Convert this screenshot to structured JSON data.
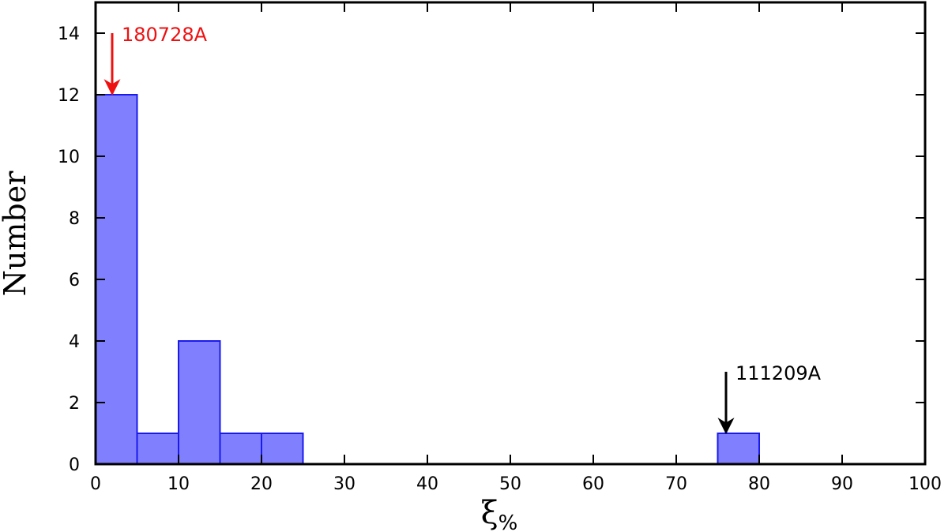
{
  "chart_data": {
    "type": "bar",
    "bins": [
      {
        "x0": 0,
        "x1": 5,
        "value": 12
      },
      {
        "x0": 5,
        "x1": 10,
        "value": 1
      },
      {
        "x0": 10,
        "x1": 15,
        "value": 4
      },
      {
        "x0": 15,
        "x1": 20,
        "value": 1
      },
      {
        "x0": 20,
        "x1": 25,
        "value": 1
      },
      {
        "x0": 75,
        "x1": 80,
        "value": 1
      }
    ],
    "xlabel": "ξ",
    "xlabel_sub": "%",
    "ylabel": "Number",
    "xlim": [
      0,
      100
    ],
    "ylim": [
      0,
      15
    ],
    "xticks": [
      0,
      10,
      20,
      30,
      40,
      50,
      60,
      70,
      80,
      90,
      100
    ],
    "yticks": [
      0,
      2,
      4,
      6,
      8,
      10,
      12,
      14
    ],
    "grid": false,
    "bar_fill": "#8080ff",
    "bar_stroke": "#1a1aee",
    "annotations": [
      {
        "text": "180728A",
        "x": 2,
        "y": 12,
        "arrow_top": 14,
        "color": "#ee1111"
      },
      {
        "text": "111209A",
        "x": 76,
        "y": 1,
        "arrow_top": 3,
        "color": "#000000"
      }
    ]
  }
}
